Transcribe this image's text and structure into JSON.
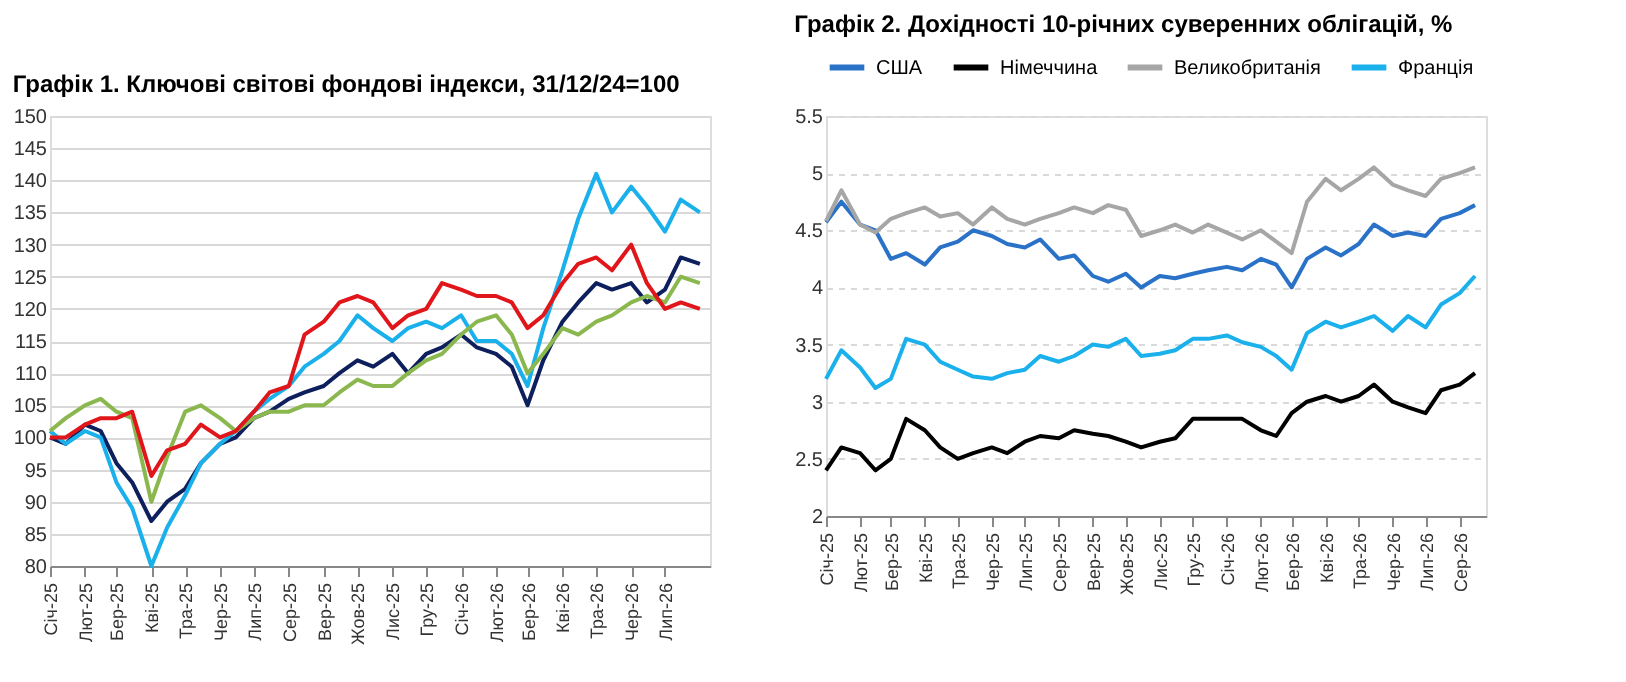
{
  "chart_data": [
    {
      "type": "line",
      "title": "Графік 1. Ключові світові фондові індекси, 31/12/24=100",
      "x": [
        "2025-01-01",
        "2025-01-15",
        "2025-02-01",
        "2025-02-15",
        "2025-03-01",
        "2025-03-15",
        "2025-04-01",
        "2025-04-15",
        "2025-05-01",
        "2025-05-15",
        "2025-06-01",
        "2025-06-15",
        "2025-07-01",
        "2025-07-15",
        "2025-08-01",
        "2025-08-15",
        "2025-09-01",
        "2025-09-15",
        "2025-10-01",
        "2025-10-15",
        "2025-11-01",
        "2025-11-15",
        "2025-12-01",
        "2025-12-15",
        "2026-01-01",
        "2026-01-15",
        "2026-02-01",
        "2026-02-15",
        "2026-03-01",
        "2026-03-15",
        "2026-04-01",
        "2026-04-15",
        "2026-05-01",
        "2026-05-15",
        "2026-06-01",
        "2026-06-15",
        "2026-07-01",
        "2026-07-15",
        "2026-08-01"
      ],
      "series": [
        {
          "color": "#0d1f5c",
          "values": [
            100,
            99,
            102,
            101,
            96,
            93,
            87,
            90,
            92,
            96,
            99,
            100,
            103,
            104,
            106,
            107,
            108,
            110,
            112,
            111,
            113,
            110,
            113,
            114,
            116,
            114,
            113,
            111,
            105,
            112,
            118,
            121,
            124,
            123,
            124,
            121,
            123,
            128,
            127
          ]
        },
        {
          "color": "#1ab0ec",
          "values": [
            101,
            99,
            101,
            100,
            93,
            89,
            80,
            86,
            91,
            96,
            99,
            101,
            104,
            106,
            108,
            111,
            113,
            115,
            119,
            117,
            115,
            117,
            118,
            117,
            119,
            115,
            115,
            113,
            108,
            117,
            126,
            134,
            141,
            135,
            139,
            136,
            132,
            137,
            135
          ]
        },
        {
          "color": "#8ab84e",
          "values": [
            101,
            103,
            105,
            106,
            104,
            103,
            90,
            97,
            104,
            105,
            103,
            101,
            103,
            104,
            104,
            105,
            105,
            107,
            109,
            108,
            108,
            110,
            112,
            113,
            116,
            118,
            119,
            116,
            110,
            113,
            117,
            116,
            118,
            119,
            121,
            122,
            121,
            125,
            124
          ]
        },
        {
          "color": "#e0161b",
          "values": [
            100,
            100,
            102,
            103,
            103,
            104,
            94,
            98,
            99,
            102,
            100,
            101,
            104,
            107,
            108,
            116,
            118,
            121,
            122,
            121,
            117,
            119,
            120,
            124,
            123,
            122,
            122,
            121,
            117,
            119,
            124,
            127,
            128,
            126,
            130,
            124,
            120,
            121,
            120
          ]
        }
      ],
      "xlim": [
        "2025-01-01",
        "2026-08-10"
      ],
      "xticks": [
        {
          "value": "2025-01",
          "label": "Січ-25"
        },
        {
          "value": "2025-02",
          "label": "Лют-25"
        },
        {
          "value": "2025-03",
          "label": "Бер-25"
        },
        {
          "value": "2025-04",
          "label": "Кві-25"
        },
        {
          "value": "2025-05",
          "label": "Тра-25"
        },
        {
          "value": "2025-06",
          "label": "Чер-25"
        },
        {
          "value": "2025-07",
          "label": "Лип-25"
        },
        {
          "value": "2025-08",
          "label": "Сер-25"
        },
        {
          "value": "2025-09",
          "label": "Вер-25"
        },
        {
          "value": "2025-10",
          "label": "Жов-25"
        },
        {
          "value": "2025-11",
          "label": "Лис-25"
        },
        {
          "value": "2025-12",
          "label": "Гру-25"
        },
        {
          "value": "2026-01",
          "label": "Січ-26"
        },
        {
          "value": "2026-02",
          "label": "Лют-26"
        },
        {
          "value": "2026-03",
          "label": "Бер-26"
        },
        {
          "value": "2026-04",
          "label": "Кві-26"
        },
        {
          "value": "2026-05",
          "label": "Тра-26"
        },
        {
          "value": "2026-06",
          "label": "Чер-26"
        },
        {
          "value": "2026-07",
          "label": "Лип-26"
        }
      ],
      "ylim": [
        80,
        150
      ],
      "yticks": [
        80,
        85,
        90,
        95,
        100,
        105,
        110,
        115,
        120,
        125,
        130,
        135,
        140,
        145,
        150
      ],
      "grid": "y",
      "legend": false
    },
    {
      "type": "line",
      "title": "Графік 2. Дохідності 10-річних суверенних облігацій, %",
      "x": [
        "2025-01-01",
        "2025-01-15",
        "2025-02-01",
        "2025-02-15",
        "2025-03-01",
        "2025-03-15",
        "2025-04-01",
        "2025-04-15",
        "2025-05-01",
        "2025-05-15",
        "2025-06-01",
        "2025-06-15",
        "2025-07-01",
        "2025-07-15",
        "2025-08-01",
        "2025-08-15",
        "2025-09-01",
        "2025-09-15",
        "2025-10-01",
        "2025-10-15",
        "2025-11-01",
        "2025-11-15",
        "2025-12-01",
        "2025-12-15",
        "2026-01-01",
        "2026-01-15",
        "2026-02-01",
        "2026-02-15",
        "2026-03-01",
        "2026-03-15",
        "2026-04-01",
        "2026-04-15",
        "2026-05-01",
        "2026-05-15",
        "2026-06-01",
        "2026-06-15",
        "2026-07-01",
        "2026-07-15",
        "2026-08-01",
        "2026-08-15"
      ],
      "series": [
        {
          "name": "США",
          "color": "#2a72c8",
          "values": [
            4.57,
            4.75,
            4.55,
            4.5,
            4.25,
            4.3,
            4.2,
            4.35,
            4.4,
            4.5,
            4.45,
            4.38,
            4.35,
            4.42,
            4.25,
            4.28,
            4.1,
            4.05,
            4.12,
            4.0,
            4.1,
            4.08,
            4.12,
            4.15,
            4.18,
            4.15,
            4.25,
            4.2,
            4.0,
            4.25,
            4.35,
            4.28,
            4.38,
            4.55,
            4.45,
            4.48,
            4.45,
            4.6,
            4.65,
            4.72
          ]
        },
        {
          "name": "Німеччина",
          "color": "#000000",
          "values": [
            2.4,
            2.6,
            2.55,
            2.4,
            2.5,
            2.85,
            2.75,
            2.6,
            2.5,
            2.55,
            2.6,
            2.55,
            2.65,
            2.7,
            2.68,
            2.75,
            2.72,
            2.7,
            2.65,
            2.6,
            2.65,
            2.68,
            2.85,
            2.85,
            2.85,
            2.85,
            2.75,
            2.7,
            2.9,
            3.0,
            3.05,
            3.0,
            3.05,
            3.15,
            3.0,
            2.95,
            2.9,
            3.1,
            3.15,
            3.25
          ]
        },
        {
          "name": "Великобританія",
          "color": "#a6a6a6",
          "values": [
            4.58,
            4.85,
            4.55,
            4.48,
            4.6,
            4.65,
            4.7,
            4.62,
            4.65,
            4.55,
            4.7,
            4.6,
            4.55,
            4.6,
            4.65,
            4.7,
            4.65,
            4.72,
            4.68,
            4.45,
            4.5,
            4.55,
            4.48,
            4.55,
            4.48,
            4.42,
            4.5,
            4.4,
            4.3,
            4.75,
            4.95,
            4.85,
            4.95,
            5.05,
            4.9,
            4.85,
            4.8,
            4.95,
            5.0,
            5.05
          ]
        },
        {
          "name": "Франція",
          "color": "#1ab0ec",
          "values": [
            3.2,
            3.45,
            3.3,
            3.12,
            3.2,
            3.55,
            3.5,
            3.35,
            3.28,
            3.22,
            3.2,
            3.25,
            3.28,
            3.4,
            3.35,
            3.4,
            3.5,
            3.48,
            3.55,
            3.4,
            3.42,
            3.45,
            3.55,
            3.55,
            3.58,
            3.52,
            3.48,
            3.4,
            3.28,
            3.6,
            3.7,
            3.65,
            3.7,
            3.75,
            3.62,
            3.75,
            3.65,
            3.85,
            3.95,
            4.1
          ]
        }
      ],
      "xlim": [
        "2025-01-01",
        "2026-08-25"
      ],
      "xticks": [
        {
          "value": "2025-01",
          "label": "Січ-25"
        },
        {
          "value": "2025-02",
          "label": "Лют-25"
        },
        {
          "value": "2025-03",
          "label": "Бер-25"
        },
        {
          "value": "2025-04",
          "label": "Кві-25"
        },
        {
          "value": "2025-05",
          "label": "Тра-25"
        },
        {
          "value": "2025-06",
          "label": "Чер-25"
        },
        {
          "value": "2025-07",
          "label": "Лип-25"
        },
        {
          "value": "2025-08",
          "label": "Сер-25"
        },
        {
          "value": "2025-09",
          "label": "Вер-25"
        },
        {
          "value": "2025-10",
          "label": "Жов-25"
        },
        {
          "value": "2025-11",
          "label": "Лис-25"
        },
        {
          "value": "2025-12",
          "label": "Гру-25"
        },
        {
          "value": "2026-01",
          "label": "Січ-26"
        },
        {
          "value": "2026-02",
          "label": "Лют-26"
        },
        {
          "value": "2026-03",
          "label": "Бер-26"
        },
        {
          "value": "2026-04",
          "label": "Кві-26"
        },
        {
          "value": "2026-05",
          "label": "Тра-26"
        },
        {
          "value": "2026-06",
          "label": "Чер-26"
        },
        {
          "value": "2026-07",
          "label": "Лип-26"
        },
        {
          "value": "2026-08",
          "label": "Сер-26"
        }
      ],
      "ylim": [
        2,
        5.5
      ],
      "yticks": [
        2,
        2.5,
        3,
        3.5,
        4,
        4.5,
        5,
        5.5
      ],
      "grid": "y",
      "legend": "top"
    }
  ]
}
